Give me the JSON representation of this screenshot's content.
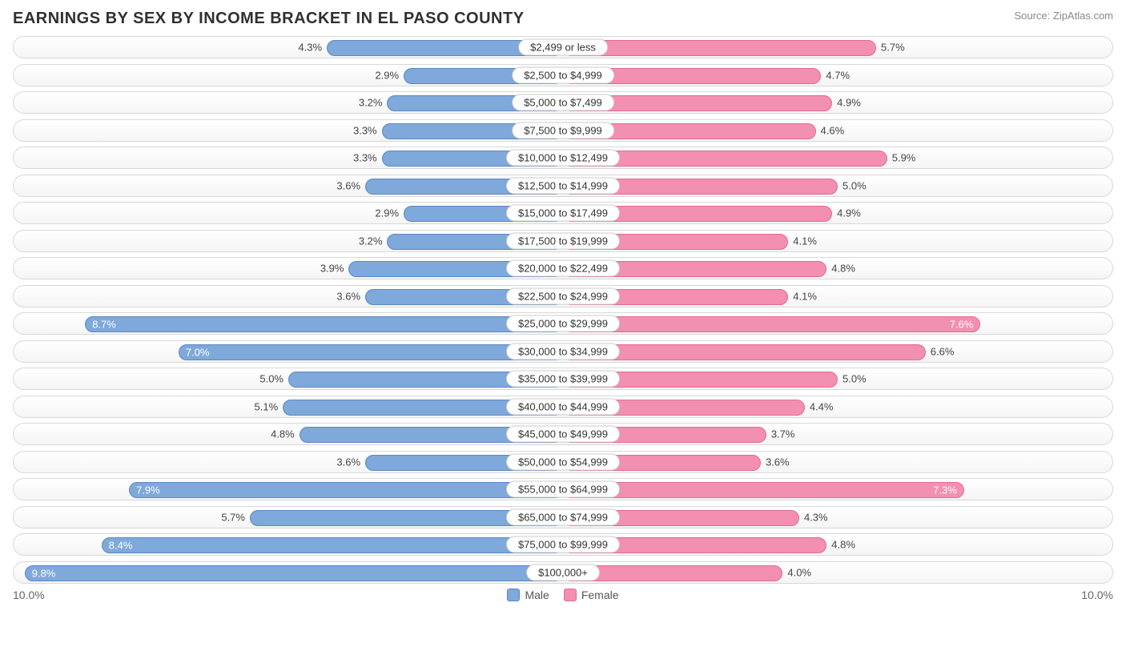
{
  "title": "EARNINGS BY SEX BY INCOME BRACKET IN EL PASO COUNTY",
  "source": "Source: ZipAtlas.com",
  "chart": {
    "type": "diverging-bar",
    "axis_max_pct": 10.0,
    "axis_label_left": "10.0%",
    "axis_label_right": "10.0%",
    "male_color": "#7fa8db",
    "male_border": "#5b88c2",
    "female_color": "#f38fb0",
    "female_border": "#e26b93",
    "track_border": "#d8d8d8",
    "track_bg_top": "#ffffff",
    "track_bg_bottom": "#f5f5f5",
    "pill_bg": "#ffffff",
    "pill_border": "#cccccc",
    "text_color": "#444444",
    "inside_text_color": "#ffffff",
    "label_fontsize": 13,
    "inside_threshold_pct": 7.0,
    "rows": [
      {
        "category": "$2,499 or less",
        "male": 4.3,
        "female": 5.7
      },
      {
        "category": "$2,500 to $4,999",
        "male": 2.9,
        "female": 4.7
      },
      {
        "category": "$5,000 to $7,499",
        "male": 3.2,
        "female": 4.9
      },
      {
        "category": "$7,500 to $9,999",
        "male": 3.3,
        "female": 4.6
      },
      {
        "category": "$10,000 to $12,499",
        "male": 3.3,
        "female": 5.9
      },
      {
        "category": "$12,500 to $14,999",
        "male": 3.6,
        "female": 5.0
      },
      {
        "category": "$15,000 to $17,499",
        "male": 2.9,
        "female": 4.9
      },
      {
        "category": "$17,500 to $19,999",
        "male": 3.2,
        "female": 4.1
      },
      {
        "category": "$20,000 to $22,499",
        "male": 3.9,
        "female": 4.8
      },
      {
        "category": "$22,500 to $24,999",
        "male": 3.6,
        "female": 4.1
      },
      {
        "category": "$25,000 to $29,999",
        "male": 8.7,
        "female": 7.6
      },
      {
        "category": "$30,000 to $34,999",
        "male": 7.0,
        "female": 6.6
      },
      {
        "category": "$35,000 to $39,999",
        "male": 5.0,
        "female": 5.0
      },
      {
        "category": "$40,000 to $44,999",
        "male": 5.1,
        "female": 4.4
      },
      {
        "category": "$45,000 to $49,999",
        "male": 4.8,
        "female": 3.7
      },
      {
        "category": "$50,000 to $54,999",
        "male": 3.6,
        "female": 3.6
      },
      {
        "category": "$55,000 to $64,999",
        "male": 7.9,
        "female": 7.3
      },
      {
        "category": "$65,000 to $74,999",
        "male": 5.7,
        "female": 4.3
      },
      {
        "category": "$75,000 to $99,999",
        "male": 8.4,
        "female": 4.8
      },
      {
        "category": "$100,000+",
        "male": 9.8,
        "female": 4.0
      }
    ]
  },
  "legend": {
    "male_label": "Male",
    "female_label": "Female"
  }
}
